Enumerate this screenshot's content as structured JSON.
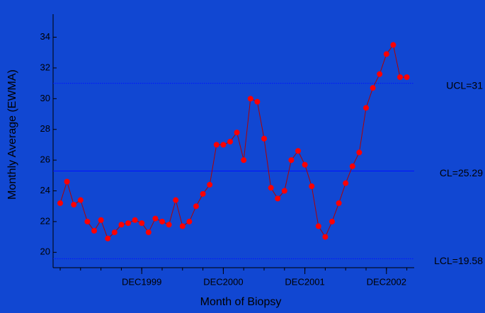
{
  "chart_data": {
    "type": "line",
    "x_label": "Month of Biopsy",
    "y_label": "Monthly Average (EWMA)",
    "categories": [
      null,
      null,
      null,
      null,
      null,
      null,
      null,
      null,
      null,
      null,
      null,
      null,
      "DEC1999",
      null,
      null,
      null,
      null,
      null,
      null,
      null,
      null,
      null,
      null,
      null,
      "DEC2000",
      null,
      null,
      null,
      null,
      null,
      null,
      null,
      null,
      null,
      null,
      null,
      "DEC2001",
      null,
      null,
      null,
      null,
      null,
      null,
      null,
      null,
      null,
      null,
      null,
      "DEC2002",
      null,
      null,
      null
    ],
    "values": [
      23.2,
      24.6,
      23.1,
      23.4,
      22.0,
      21.4,
      22.1,
      20.9,
      21.3,
      21.8,
      21.9,
      22.1,
      21.9,
      21.3,
      22.2,
      22.0,
      21.8,
      23.4,
      21.7,
      22.0,
      23.0,
      23.8,
      24.4,
      27.0,
      27.0,
      27.2,
      27.8,
      26.0,
      30.0,
      29.8,
      27.4,
      24.2,
      23.5,
      24.0,
      26.0,
      26.6,
      25.7,
      24.3,
      21.7,
      21.0,
      22.0,
      23.2,
      24.5,
      25.6,
      26.5,
      29.4,
      30.7,
      31.6,
      32.9,
      33.5,
      31.4,
      31.4
    ],
    "color": "#ff0000",
    "line_color": "#b00000",
    "ylim": [
      19,
      35.5
    ],
    "yticks": [
      20,
      22,
      24,
      26,
      28,
      30,
      32,
      34
    ],
    "control_lines": [
      {
        "label": "UCL=31",
        "value": 31,
        "style": "dotted"
      },
      {
        "label": "CL=25.29",
        "value": 25.29,
        "style": "solid"
      },
      {
        "label": "LCL=19.58",
        "value": 19.58,
        "style": "dotted"
      }
    ]
  }
}
